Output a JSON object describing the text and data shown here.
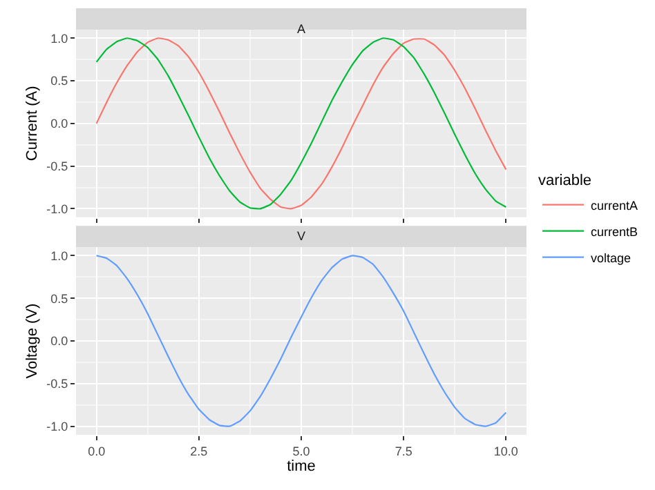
{
  "chart_data": [
    {
      "type": "line",
      "title": "A",
      "ylabel": "Current (A)",
      "legend_title": "variable",
      "legend": "right",
      "grid": true,
      "tick_labels": "y",
      "x": [
        0,
        0.25,
        0.5,
        0.75,
        1,
        1.25,
        1.5,
        1.75,
        2,
        2.25,
        2.5,
        2.75,
        3,
        3.25,
        3.5,
        3.75,
        4,
        4.25,
        4.5,
        4.75,
        5,
        5.25,
        5.5,
        5.75,
        6,
        6.25,
        6.5,
        6.75,
        7,
        7.25,
        7.5,
        7.75,
        8,
        8.25,
        8.5,
        8.75,
        9,
        9.25,
        9.5,
        9.75,
        10
      ],
      "xlim": [
        -0.5,
        10.5
      ],
      "xticks": [
        {
          "value": 0,
          "label": null
        },
        {
          "value": 2.5,
          "label": null
        },
        {
          "value": 5,
          "label": null
        },
        {
          "value": 7.5,
          "label": null
        },
        {
          "value": 10,
          "label": null
        }
      ],
      "ylim": [
        -1.1,
        1.1
      ],
      "yticks": [
        {
          "value": -1,
          "label": "-1.0"
        },
        {
          "value": -0.5,
          "label": "-0.5"
        },
        {
          "value": 0,
          "label": "0.0"
        },
        {
          "value": 0.5,
          "label": "0.5"
        },
        {
          "value": 1,
          "label": "1.0"
        }
      ],
      "series": [
        {
          "name": "currentA",
          "color": "#f8766d",
          "values": [
            0,
            0.25,
            0.48,
            0.68,
            0.84,
            0.95,
            1.0,
            0.98,
            0.91,
            0.78,
            0.6,
            0.38,
            0.14,
            -0.11,
            -0.35,
            -0.57,
            -0.76,
            -0.89,
            -0.98,
            -1.0,
            -0.96,
            -0.86,
            -0.71,
            -0.51,
            -0.28,
            -0.03,
            0.21,
            0.45,
            0.66,
            0.82,
            0.94,
            0.99,
            0.99,
            0.92,
            0.8,
            0.62,
            0.41,
            0.17,
            -0.08,
            -0.32,
            -0.54
          ]
        },
        {
          "name": "currentB",
          "color": "#00ba38",
          "values": [
            0.72,
            0.87,
            0.96,
            1.0,
            0.97,
            0.89,
            0.75,
            0.56,
            0.33,
            0.09,
            -0.16,
            -0.4,
            -0.61,
            -0.79,
            -0.92,
            -0.99,
            -1.0,
            -0.95,
            -0.83,
            -0.67,
            -0.46,
            -0.23,
            0.02,
            0.27,
            0.49,
            0.69,
            0.85,
            0.95,
            1.0,
            0.98,
            0.9,
            0.77,
            0.58,
            0.36,
            0.12,
            -0.13,
            -0.37,
            -0.59,
            -0.77,
            -0.91,
            -0.98
          ]
        }
      ]
    },
    {
      "type": "line",
      "title": "V",
      "xlabel": "time",
      "ylabel": "Voltage (V)",
      "legend": "right",
      "grid": true,
      "x": [
        0,
        0.25,
        0.5,
        0.75,
        1,
        1.25,
        1.5,
        1.75,
        2,
        2.25,
        2.5,
        2.75,
        3,
        3.25,
        3.5,
        3.75,
        4,
        4.25,
        4.5,
        4.75,
        5,
        5.25,
        5.5,
        5.75,
        6,
        6.25,
        6.5,
        6.75,
        7,
        7.25,
        7.5,
        7.75,
        8,
        8.25,
        8.5,
        8.75,
        9,
        9.25,
        9.5,
        9.75,
        10
      ],
      "xlim": [
        -0.5,
        10.5
      ],
      "xticks": [
        {
          "value": 0,
          "label": "0.0"
        },
        {
          "value": 2.5,
          "label": "2.5"
        },
        {
          "value": 5,
          "label": "5.0"
        },
        {
          "value": 7.5,
          "label": "7.5"
        },
        {
          "value": 10,
          "label": "10.0"
        }
      ],
      "ylim": [
        -1.1,
        1.1
      ],
      "yticks": [
        {
          "value": -1,
          "label": "-1.0"
        },
        {
          "value": -0.5,
          "label": "-0.5"
        },
        {
          "value": 0,
          "label": "0.0"
        },
        {
          "value": 0.5,
          "label": "0.5"
        },
        {
          "value": 1,
          "label": "1.0"
        }
      ],
      "series": [
        {
          "name": "voltage",
          "color": "#619cff",
          "values": [
            1,
            0.97,
            0.88,
            0.73,
            0.54,
            0.32,
            0.07,
            -0.18,
            -0.42,
            -0.63,
            -0.8,
            -0.92,
            -0.99,
            -1.0,
            -0.94,
            -0.82,
            -0.65,
            -0.44,
            -0.21,
            0.04,
            0.28,
            0.51,
            0.71,
            0.86,
            0.96,
            1.0,
            0.98,
            0.9,
            0.75,
            0.56,
            0.35,
            0.1,
            -0.15,
            -0.39,
            -0.6,
            -0.78,
            -0.91,
            -0.98,
            -1.0,
            -0.96,
            -0.84
          ]
        }
      ]
    }
  ]
}
